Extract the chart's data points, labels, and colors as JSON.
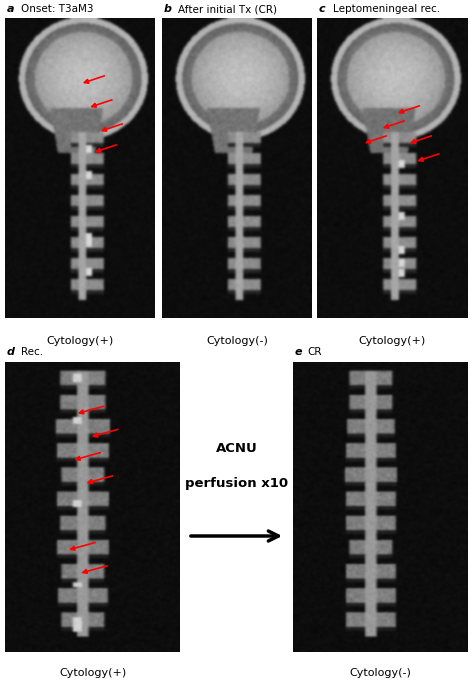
{
  "bg_color": "#ffffff",
  "top_row": {
    "labels": [
      "a",
      "b",
      "c"
    ],
    "subtitles": [
      "Onset: T3aM3",
      "After initial Tx (CR)",
      "Leptomeningeal rec."
    ],
    "cytology": [
      "Cytology(+)",
      "Cytology(-)",
      "Cytology(+)"
    ]
  },
  "bottom_row": {
    "labels": [
      "d",
      "e"
    ],
    "subtitles": [
      "Rec.",
      "CR"
    ],
    "cytology": [
      "Cytology(+)",
      "Cytology(-)"
    ]
  },
  "arrow_text_line1": "ACNU",
  "arrow_text_line2": "perfusion x10",
  "label_fontsize": 8,
  "cytology_fontsize": 8,
  "arrow_text_fontsize": 9.5
}
